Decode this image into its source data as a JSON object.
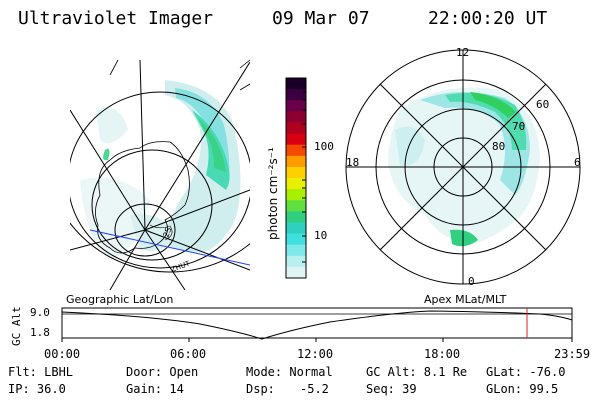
{
  "header": {
    "title": "Ultraviolet Imager",
    "date": "09 Mar 07",
    "time": "22:00:20 UT"
  },
  "colorbar": {
    "unit_label": "photon cm⁻²s⁻¹",
    "ticks": [
      "100",
      "10"
    ],
    "colors": [
      "#1a0026",
      "#3b0040",
      "#6a004a",
      "#8b0030",
      "#b00020",
      "#d80010",
      "#f44a00",
      "#ff9a00",
      "#ffd000",
      "#e8f000",
      "#a8f000",
      "#60e040",
      "#30d080",
      "#30d0c0",
      "#40e0e0",
      "#80e8e8",
      "#b8f0f0",
      "#e0f4f4"
    ]
  },
  "geo_panel": {
    "label": "Geographic Lat/Lon",
    "map_text": [
      "2S",
      "ZHUT"
    ]
  },
  "polar_panel": {
    "label": "Apex MLat/MLT",
    "mlt_labels": {
      "top": "12",
      "left": "18",
      "right": "6",
      "bottom": "0"
    },
    "lat_labels": [
      "60",
      "70",
      "80"
    ]
  },
  "altitude_plot": {
    "axis_label": "GC Alt",
    "y_ticks": [
      "9.0",
      "1.8"
    ],
    "x_ticks": [
      "00:00",
      "06:00",
      "12:00",
      "18:00",
      "23:59"
    ],
    "marker_color": "#e02020"
  },
  "footer": {
    "filter": "Flt: LBHL",
    "ip": "IP: 36.0",
    "door": "Door: Open",
    "gain": "Gain: 14",
    "mode": "Mode: Normal",
    "dsp_label": "Dsp:",
    "dsp_value": "-5.2",
    "gc_alt": "GC Alt: 8.1 Re",
    "seq": "Seq: 39",
    "glat": "GLat: -76.0",
    "glon": "GLon: 99.5"
  }
}
